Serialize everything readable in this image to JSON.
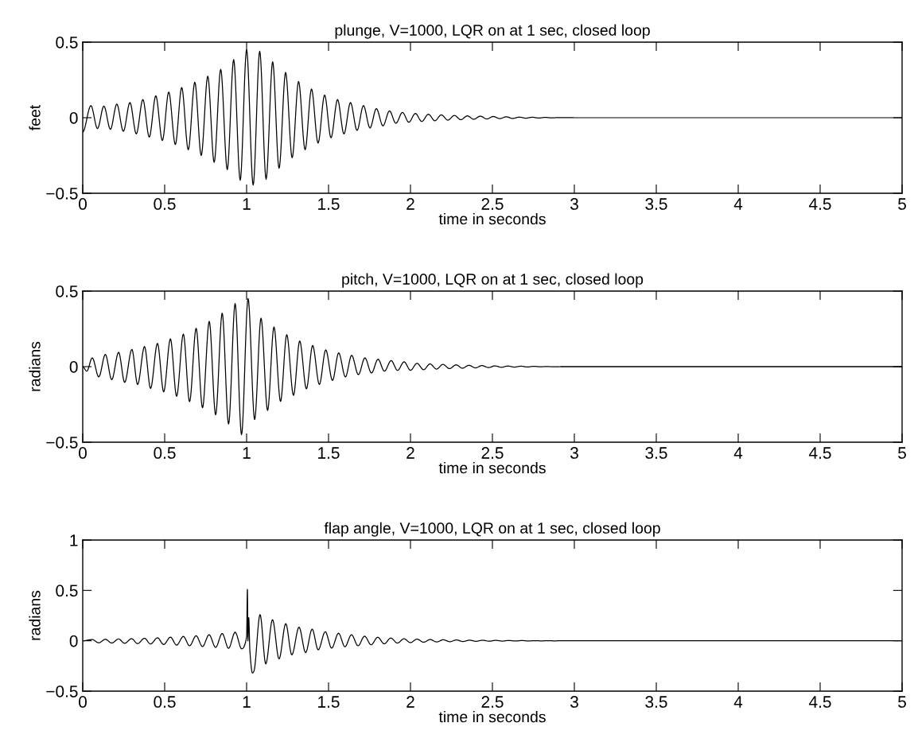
{
  "chart_data": [
    {
      "type": "line",
      "title": "plunge, V=1000, LQR on at 1 sec, closed loop",
      "xlabel": "time in seconds",
      "ylabel": "feet",
      "color": "#000000",
      "xlim": [
        0,
        5
      ],
      "xticks": [
        0,
        0.5,
        1,
        1.5,
        2,
        2.5,
        3,
        3.5,
        4,
        4.5,
        5
      ],
      "ylim": [
        -0.5,
        0.5
      ],
      "yticks": [
        -0.5,
        0,
        0.5
      ],
      "x": [
        0,
        0.05,
        0.09,
        0.129,
        0.169,
        0.208,
        0.248,
        0.288,
        0.327,
        0.367,
        0.406,
        0.446,
        0.486,
        0.525,
        0.565,
        0.604,
        0.644,
        0.684,
        0.723,
        0.763,
        0.802,
        0.842,
        0.882,
        0.921,
        0.961,
        1.0,
        1.04,
        1.08,
        1.119,
        1.159,
        1.198,
        1.238,
        1.278,
        1.317,
        1.357,
        1.396,
        1.436,
        1.476,
        1.515,
        1.555,
        1.594,
        1.634,
        1.674,
        1.713,
        1.753,
        1.792,
        1.832,
        1.872,
        1.911,
        1.951,
        1.99,
        2.03,
        2.069,
        2.109,
        2.149,
        2.188,
        2.228,
        2.268,
        2.307,
        2.347,
        2.386,
        2.426,
        2.466,
        2.505,
        2.545,
        2.584,
        2.624,
        2.664,
        2.703,
        2.743,
        2.782,
        2.822,
        2.862,
        2.901,
        3.0,
        5.0
      ],
      "values": [
        -0.095,
        0.08,
        -0.072,
        0.077,
        -0.077,
        0.09,
        -0.09,
        0.1,
        -0.107,
        0.12,
        -0.128,
        0.145,
        -0.151,
        0.17,
        -0.177,
        0.2,
        -0.212,
        0.235,
        -0.25,
        0.275,
        -0.295,
        0.32,
        -0.344,
        0.385,
        -0.414,
        0.45,
        -0.446,
        0.44,
        -0.407,
        0.37,
        -0.335,
        0.3,
        -0.265,
        0.24,
        -0.212,
        0.19,
        -0.168,
        0.15,
        -0.133,
        0.12,
        -0.107,
        0.1,
        -0.084,
        0.08,
        -0.068,
        0.06,
        -0.054,
        0.045,
        -0.037,
        0.035,
        -0.03,
        0.028,
        -0.025,
        0.023,
        -0.02,
        0.019,
        -0.016,
        0.015,
        -0.013,
        0.012,
        -0.01,
        0.01,
        -0.008,
        0.008,
        -0.006,
        0.006,
        -0.005,
        0.004,
        -0.003,
        0.003,
        -0.002,
        0.002,
        -0.001,
        0.001,
        0,
        0
      ]
    },
    {
      "type": "line",
      "title": "pitch, V=1000, LQR on at 1 sec, closed loop",
      "xlabel": "time in seconds",
      "ylabel": "radians",
      "color": "#000000",
      "xlim": [
        0,
        5
      ],
      "xticks": [
        0,
        0.5,
        1,
        1.5,
        2,
        2.5,
        3,
        3.5,
        4,
        4.5,
        5
      ],
      "ylim": [
        -0.5,
        0.5
      ],
      "yticks": [
        -0.5,
        0,
        0.5
      ],
      "x": [
        0,
        0.025,
        0.058,
        0.098,
        0.138,
        0.177,
        0.219,
        0.256,
        0.3,
        0.335,
        0.377,
        0.414,
        0.456,
        0.494,
        0.535,
        0.573,
        0.614,
        0.652,
        0.692,
        0.731,
        0.772,
        0.811,
        0.851,
        0.89,
        0.93,
        0.969,
        1.009,
        1.049,
        1.088,
        1.128,
        1.167,
        1.207,
        1.245,
        1.286,
        1.324,
        1.365,
        1.403,
        1.444,
        1.483,
        1.524,
        1.562,
        1.603,
        1.641,
        1.682,
        1.722,
        1.762,
        1.802,
        1.841,
        1.882,
        1.921,
        1.961,
        2.0,
        2.04,
        2.08,
        2.119,
        2.159,
        2.198,
        2.238,
        2.278,
        2.317,
        2.357,
        2.396,
        2.436,
        2.476,
        2.515,
        2.555,
        2.594,
        2.634,
        2.674,
        2.713,
        2.753,
        2.792,
        2.832,
        2.871,
        2.911,
        3.0,
        5.0
      ],
      "values": [
        0,
        -0.03,
        0.058,
        -0.068,
        0.081,
        -0.086,
        0.095,
        -0.104,
        0.114,
        -0.118,
        0.133,
        -0.144,
        0.154,
        -0.167,
        0.184,
        -0.196,
        0.216,
        -0.232,
        0.254,
        -0.272,
        0.3,
        -0.319,
        0.354,
        -0.38,
        0.418,
        -0.45,
        0.451,
        -0.35,
        0.321,
        -0.29,
        0.263,
        -0.23,
        0.212,
        -0.19,
        0.17,
        -0.147,
        0.14,
        -0.118,
        0.111,
        -0.091,
        0.091,
        -0.068,
        0.075,
        -0.053,
        0.058,
        -0.042,
        0.049,
        -0.03,
        0.04,
        -0.025,
        0.032,
        -0.024,
        0.022,
        -0.02,
        0.018,
        -0.016,
        0.015,
        -0.013,
        0.012,
        -0.01,
        0.009,
        -0.008,
        0.007,
        -0.006,
        0.005,
        -0.004,
        0.004,
        -0.003,
        0.003,
        -0.002,
        0.002,
        -0.001,
        0.001,
        -0.001,
        0,
        0,
        0
      ]
    },
    {
      "type": "line",
      "title": "flap angle, V=1000, LQR on at 1 sec, closed loop",
      "xlabel": "time in seconds",
      "ylabel": "radians",
      "color": "#000000",
      "xlim": [
        0,
        5
      ],
      "xticks": [
        0,
        0.5,
        1,
        1.5,
        2,
        2.5,
        3,
        3.5,
        4,
        4.5,
        5
      ],
      "ylim": [
        -0.5,
        1
      ],
      "yticks": [
        -0.5,
        0,
        0.5,
        1
      ],
      "x": [
        0,
        0.058,
        0.098,
        0.138,
        0.177,
        0.219,
        0.256,
        0.298,
        0.335,
        0.377,
        0.414,
        0.456,
        0.494,
        0.535,
        0.573,
        0.614,
        0.652,
        0.692,
        0.731,
        0.771,
        0.811,
        0.851,
        0.89,
        0.93,
        0.97,
        1.0,
        1.005,
        1.008,
        1.013,
        1.02,
        1.036,
        1.045,
        1.082,
        1.117,
        1.158,
        1.198,
        1.239,
        1.276,
        1.32,
        1.36,
        1.4,
        1.437,
        1.48,
        1.519,
        1.561,
        1.6,
        1.64,
        1.68,
        1.72,
        1.76,
        1.8,
        1.84,
        1.88,
        1.92,
        1.96,
        2.0,
        2.04,
        2.08,
        2.12,
        2.16,
        2.2,
        2.24,
        2.28,
        2.32,
        2.36,
        2.4,
        2.44,
        2.48,
        2.52,
        2.56,
        2.6,
        2.64,
        2.68,
        2.72,
        2.76,
        2.8,
        2.84,
        2.88,
        2.92,
        2.96,
        3.0,
        3.1,
        5.0
      ],
      "values": [
        0,
        0.012,
        -0.02,
        0.015,
        -0.022,
        0.018,
        -0.025,
        0.021,
        -0.028,
        0.025,
        -0.032,
        0.03,
        -0.037,
        0.036,
        -0.043,
        0.043,
        -0.05,
        0.05,
        -0.058,
        0.06,
        -0.066,
        0.072,
        -0.075,
        0.085,
        -0.08,
        0.04,
        0.51,
        0.0,
        0.23,
        -0.1,
        -0.32,
        -0.3,
        0.26,
        -0.23,
        0.21,
        -0.18,
        0.17,
        -0.14,
        0.135,
        -0.117,
        0.115,
        -0.09,
        0.09,
        -0.073,
        0.075,
        -0.06,
        0.06,
        -0.05,
        0.045,
        -0.04,
        0.035,
        -0.03,
        0.027,
        -0.023,
        0.02,
        -0.018,
        0.016,
        -0.014,
        0.012,
        -0.011,
        0.01,
        -0.009,
        0.008,
        -0.007,
        0.006,
        -0.005,
        0.005,
        -0.004,
        0.004,
        -0.003,
        0.003,
        -0.002,
        0.002,
        -0.002,
        0.001,
        -0.001,
        0.001,
        -0.001,
        0.001,
        0,
        0,
        0,
        0
      ]
    }
  ]
}
